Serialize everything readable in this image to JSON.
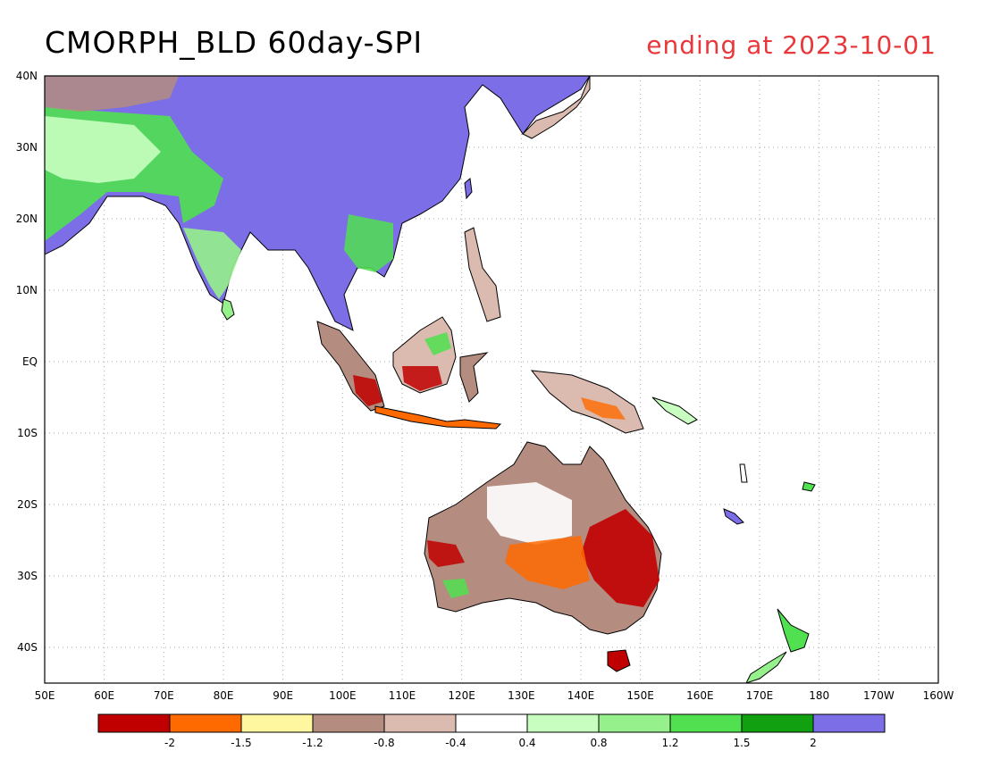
{
  "title": "CMORPH_BLD 60day-SPI",
  "subtitle": "ending at 2023-10-01",
  "lat_ticks": [
    "40N",
    "30N",
    "20N",
    "10N",
    "EQ",
    "10S",
    "20S",
    "30S",
    "40S"
  ],
  "lon_ticks": [
    "50E",
    "60E",
    "70E",
    "80E",
    "90E",
    "100E",
    "110E",
    "120E",
    "130E",
    "140E",
    "150E",
    "160E",
    "170E",
    "180",
    "170W",
    "160W"
  ],
  "map": {
    "lon_min": 50,
    "lon_max": 200,
    "lat_min": -45,
    "lat_max": 40,
    "grid": "dotted"
  },
  "colorbar": {
    "colors": [
      "#c00000",
      "#ff6a00",
      "#fff7a0",
      "#b48c80",
      "#dbbab0",
      "#ffffff",
      "#c8ffc0",
      "#96f08c",
      "#50e050",
      "#10a010",
      "#7b6ee6"
    ],
    "labels": [
      "-2",
      "-1.5",
      "-1.2",
      "-0.8",
      "-0.4",
      "0.4",
      "0.8",
      "1.2",
      "1.5",
      "2"
    ]
  },
  "colors": {
    "title": "#000000",
    "subtitle": "#e8383b",
    "coast": "#000000",
    "grid": "#aaaaaa"
  }
}
